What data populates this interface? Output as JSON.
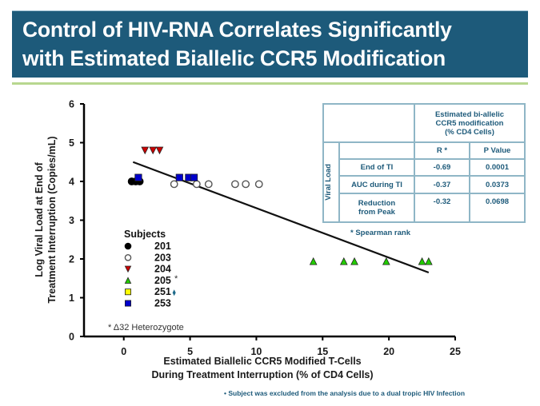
{
  "title": {
    "line1": "Control of HIV-RNA Correlates Significantly",
    "line2": "with Estimated Biallelic CCR5 Modification"
  },
  "colors": {
    "banner": "#1d5a7a",
    "rule": "#b8d78f",
    "table_text": "#1d5a7a",
    "table_border": "#8fb6c6"
  },
  "chart_data": {
    "type": "scatter",
    "title": "",
    "xlabel": "Estimated Biallelic CCR5 Modified T-Cells During Treatment Interruption (% of CD4 Cells)",
    "xlabel_lines": [
      "Estimated Biallelic CCR5 Modified T-Cells",
      "During Treatment Interruption (% of CD4 Cells)"
    ],
    "ylabel": "Log Viral Load at End of Treatment Interruption (Copies/mL)",
    "ylabel_lines": [
      "Log Viral Load at End of",
      "Treatment Interruption (Copies/mL)"
    ],
    "xlim": [
      -3,
      25
    ],
    "ylim": [
      0,
      6
    ],
    "xticks": [
      0,
      5,
      10,
      15,
      20,
      25
    ],
    "yticks": [
      0,
      1,
      2,
      3,
      4,
      5,
      6
    ],
    "grid": false,
    "legend_title": "Subjects",
    "legend_position": "bottom-left",
    "series": [
      {
        "name": "201",
        "marker": "circle",
        "color": "#000000",
        "filled": true,
        "points": [
          [
            0.6,
            4.0
          ],
          [
            0.9,
            4.0
          ],
          [
            1.2,
            4.0
          ]
        ]
      },
      {
        "name": "203",
        "marker": "circle",
        "color": "#ffffff",
        "filled": false,
        "points": [
          [
            3.8,
            3.93
          ],
          [
            5.5,
            3.93
          ],
          [
            6.4,
            3.93
          ],
          [
            8.4,
            3.93
          ],
          [
            9.2,
            3.93
          ],
          [
            10.2,
            3.93
          ]
        ]
      },
      {
        "name": "204",
        "marker": "triangle-down",
        "color": "#cc0000",
        "filled": true,
        "points": [
          [
            1.6,
            4.8
          ],
          [
            2.2,
            4.8
          ],
          [
            2.7,
            4.8
          ]
        ]
      },
      {
        "name": "205",
        "marker": "triangle-up",
        "color": "#22cc00",
        "filled": true,
        "annotation": "*",
        "points": [
          [
            14.3,
            1.94
          ],
          [
            16.6,
            1.94
          ],
          [
            17.4,
            1.94
          ],
          [
            19.8,
            1.94
          ],
          [
            22.5,
            1.94
          ],
          [
            23.0,
            1.94
          ]
        ]
      },
      {
        "name": "251",
        "marker": "square",
        "color": "#ffff00",
        "filled": true,
        "annotation": "dagger",
        "points": []
      },
      {
        "name": "253",
        "marker": "square",
        "color": "#0000cc",
        "filled": true,
        "points": [
          [
            1.1,
            4.1
          ],
          [
            4.2,
            4.1
          ],
          [
            4.9,
            4.1
          ],
          [
            5.3,
            4.1
          ]
        ]
      }
    ],
    "excluded_marker": {
      "label": "251",
      "point": [
        3.8,
        1.13
      ],
      "color": "#1d6a8a"
    },
    "regression_line": {
      "x": [
        0.7,
        23.0
      ],
      "y": [
        4.5,
        1.65
      ]
    },
    "annotations": [
      "* Δ32 Heterozygote"
    ]
  },
  "table": {
    "header": [
      "Estimated bi-allelic",
      "CCR5 modification",
      "(% CD4 Cells)"
    ],
    "row_group_label": "Viral Load",
    "col_labels": [
      "R *",
      "P Value"
    ],
    "rows": [
      {
        "label": "End of TI",
        "r": "-0.69",
        "p": "0.0001"
      },
      {
        "label": "AUC during TI",
        "r": "-0.37",
        "p": "0.0373"
      },
      {
        "label": "Reduction from Peak",
        "r": "-0.32",
        "p": "0.0698"
      }
    ],
    "footnote": "* Spearman rank"
  },
  "footnote": "•  Subject was excluded from the analysis due to a dual tropic HIV Infection"
}
